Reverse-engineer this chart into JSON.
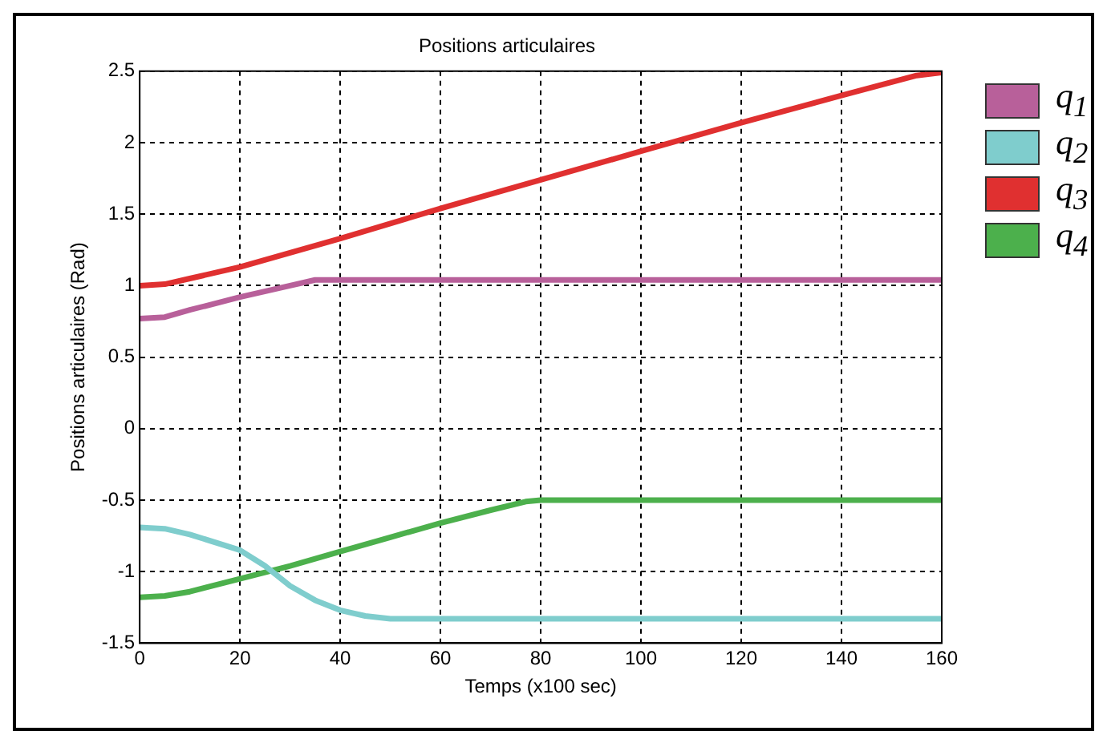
{
  "chart_data": {
    "type": "line",
    "title": "Positions articulaires",
    "xlabel": "Temps (x100 sec)",
    "ylabel": "Positions articulaires (Rad)",
    "xlim": [
      0,
      160
    ],
    "xticks": [
      0,
      20,
      40,
      60,
      80,
      100,
      120,
      140,
      160
    ],
    "ylim": [
      -1.5,
      2.5
    ],
    "yticks": [
      -1.5,
      -1,
      -0.5,
      0,
      0.5,
      1,
      1.5,
      2,
      2.5
    ],
    "grid": true,
    "legend": "right",
    "marker": "none",
    "series": [
      {
        "name": "q$_{1}$",
        "color": "#b8609a",
        "x": [
          0,
          5,
          10,
          20,
          30,
          35,
          160
        ],
        "values": [
          0.77,
          0.78,
          0.83,
          0.92,
          1.0,
          1.04,
          1.04
        ]
      },
      {
        "name": "q$_{2}$",
        "color": "#7fcdcd",
        "x": [
          0,
          5,
          10,
          20,
          25,
          30,
          35,
          40,
          45,
          50,
          160
        ],
        "values": [
          -0.69,
          -0.7,
          -0.74,
          -0.85,
          -0.96,
          -1.1,
          -1.2,
          -1.27,
          -1.31,
          -1.33,
          -1.33
        ]
      },
      {
        "name": "q$_{3}$",
        "color": "#e03030",
        "x": [
          0,
          5,
          10,
          20,
          40,
          60,
          80,
          100,
          120,
          140,
          155,
          160
        ],
        "values": [
          1.0,
          1.01,
          1.05,
          1.13,
          1.33,
          1.54,
          1.74,
          1.94,
          2.14,
          2.33,
          2.47,
          2.49
        ]
      },
      {
        "name": "q$_{4}$",
        "color": "#4cb04c",
        "x": [
          0,
          5,
          10,
          20,
          30,
          40,
          50,
          60,
          70,
          77,
          80,
          160
        ],
        "values": [
          -1.18,
          -1.17,
          -1.14,
          -1.05,
          -0.96,
          -0.86,
          -0.76,
          -0.66,
          -0.57,
          -0.51,
          -0.5,
          -0.5
        ]
      }
    ]
  }
}
